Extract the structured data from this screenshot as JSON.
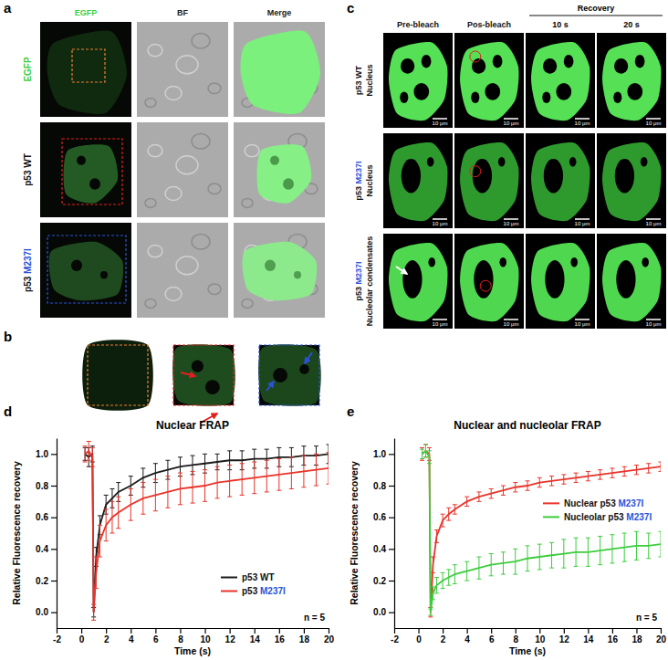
{
  "figure": {
    "panels": {
      "a": {
        "label": "a",
        "columns": [
          "EGFP",
          "BF",
          "Merge"
        ],
        "rows": [
          "EGFP",
          "p53 WT",
          "p53 M237I"
        ]
      },
      "b": {
        "label": "b"
      },
      "c": {
        "label": "c",
        "columns": [
          "Pre-bleach",
          "Pos-bleach"
        ],
        "recovery": {
          "label": "Recovery",
          "times": [
            "10 s",
            "20 s"
          ]
        },
        "rows": [
          [
            "p53 WT",
            "Nucleus"
          ],
          [
            "p53 M237I",
            "Nucleus"
          ],
          [
            "p53 M237I",
            "Nucleolar condensates"
          ]
        ],
        "scale_bar": "10 μm"
      }
    }
  },
  "chart_data": [
    {
      "panel_label": "d",
      "type": "line",
      "title": "Nuclear FRAP",
      "xlabel": "Time (s)",
      "ylabel": "Relative Fluorescence recovery",
      "x": [
        0.3,
        0.6,
        0.9,
        1.0,
        1.2,
        1.5,
        2,
        2.5,
        3,
        4,
        5,
        6,
        7,
        8,
        9,
        10,
        11,
        12,
        13,
        14,
        15,
        16,
        17,
        18,
        19,
        20
      ],
      "series": [
        {
          "name": "p53 WT",
          "color": "#1a1a1a",
          "values": [
            1.0,
            0.98,
            1.0,
            0.0,
            0.35,
            0.55,
            0.68,
            0.72,
            0.76,
            0.8,
            0.85,
            0.88,
            0.9,
            0.92,
            0.93,
            0.94,
            0.95,
            0.96,
            0.96,
            0.97,
            0.97,
            0.98,
            0.98,
            0.99,
            0.99,
            1.0
          ],
          "errors": [
            0.04,
            0.06,
            0.05,
            0.03,
            0.06,
            0.06,
            0.06,
            0.06,
            0.06,
            0.06,
            0.06,
            0.06,
            0.06,
            0.06,
            0.06,
            0.06,
            0.05,
            0.06,
            0.06,
            0.06,
            0.06,
            0.06,
            0.06,
            0.06,
            0.06,
            0.06
          ]
        },
        {
          "name": "p53 M237I",
          "color": "#e8332a",
          "values": [
            1.0,
            1.02,
            0.98,
            0.0,
            0.25,
            0.45,
            0.55,
            0.6,
            0.63,
            0.68,
            0.72,
            0.74,
            0.76,
            0.78,
            0.79,
            0.8,
            0.82,
            0.83,
            0.84,
            0.85,
            0.86,
            0.87,
            0.88,
            0.89,
            0.9,
            0.91
          ],
          "errors": [
            0.05,
            0.06,
            0.06,
            0.05,
            0.1,
            0.1,
            0.1,
            0.1,
            0.1,
            0.1,
            0.1,
            0.1,
            0.1,
            0.1,
            0.1,
            0.1,
            0.1,
            0.1,
            0.1,
            0.1,
            0.1,
            0.1,
            0.1,
            0.1,
            0.1,
            0.1
          ]
        }
      ],
      "xlim": [
        -2,
        20
      ],
      "ylim": [
        -0.1,
        1.1
      ],
      "xticks": [
        -2,
        0,
        2,
        4,
        6,
        8,
        10,
        12,
        14,
        16,
        18,
        20
      ],
      "yticks": [
        {
          "value": 0,
          "label": "0.0"
        },
        {
          "value": 0.2,
          "label": "0.2"
        },
        {
          "value": 0.4,
          "label": "0.4"
        },
        {
          "value": 0.6,
          "label": "0.6"
        },
        {
          "value": 0.8,
          "label": "0.8"
        },
        {
          "value": 1.0,
          "label": "1.0"
        }
      ],
      "legend": "lower right",
      "line_style": "solid",
      "annotations": [
        "n = 5"
      ]
    },
    {
      "panel_label": "e",
      "type": "line",
      "title": "Nuclear and nucleolar FRAP",
      "xlabel": "Time (s)",
      "ylabel": "Relative Fluorescence recovery",
      "x": [
        0.3,
        0.6,
        0.9,
        1.0,
        1.2,
        1.5,
        2,
        2.5,
        3,
        4,
        5,
        6,
        7,
        8,
        9,
        10,
        11,
        12,
        13,
        14,
        15,
        16,
        17,
        18,
        19,
        20
      ],
      "series": [
        {
          "name": "Nuclear p53 M237I",
          "color": "#e8332a",
          "values": [
            1.0,
            1.02,
            1.0,
            0.0,
            0.3,
            0.48,
            0.58,
            0.62,
            0.65,
            0.7,
            0.73,
            0.75,
            0.77,
            0.79,
            0.8,
            0.82,
            0.83,
            0.84,
            0.85,
            0.86,
            0.87,
            0.88,
            0.89,
            0.9,
            0.91,
            0.92
          ],
          "errors": [
            0.04,
            0.04,
            0.04,
            0.03,
            0.05,
            0.04,
            0.04,
            0.04,
            0.03,
            0.03,
            0.03,
            0.03,
            0.03,
            0.03,
            0.03,
            0.03,
            0.03,
            0.03,
            0.03,
            0.03,
            0.03,
            0.03,
            0.03,
            0.03,
            0.03,
            0.03
          ]
        },
        {
          "name": "Nucleolar p53 M237I",
          "color": "#3dcc3d",
          "values": [
            1.0,
            1.02,
            0.98,
            0.0,
            0.12,
            0.17,
            0.2,
            0.22,
            0.24,
            0.26,
            0.28,
            0.3,
            0.31,
            0.32,
            0.34,
            0.35,
            0.36,
            0.37,
            0.38,
            0.38,
            0.39,
            0.4,
            0.41,
            0.42,
            0.42,
            0.43
          ],
          "errors": [
            0.03,
            0.04,
            0.04,
            0.02,
            0.04,
            0.05,
            0.05,
            0.05,
            0.06,
            0.06,
            0.07,
            0.07,
            0.07,
            0.08,
            0.08,
            0.08,
            0.08,
            0.09,
            0.09,
            0.09,
            0.09,
            0.09,
            0.09,
            0.09,
            0.08,
            0.08
          ]
        }
      ],
      "xlim": [
        -2,
        20
      ],
      "ylim": [
        -0.1,
        1.1
      ],
      "xticks": [
        -2,
        0,
        2,
        4,
        6,
        8,
        10,
        12,
        14,
        16,
        18,
        20
      ],
      "yticks": [
        {
          "value": 0,
          "label": "0.0"
        },
        {
          "value": 0.2,
          "label": "0.2"
        },
        {
          "value": 0.4,
          "label": "0.4"
        },
        {
          "value": 0.6,
          "label": "0.6"
        },
        {
          "value": 0.8,
          "label": "0.8"
        },
        {
          "value": 1.0,
          "label": "1.0"
        }
      ],
      "legend": "right",
      "line_style": "solid",
      "annotations": [
        "n = 5"
      ]
    }
  ]
}
